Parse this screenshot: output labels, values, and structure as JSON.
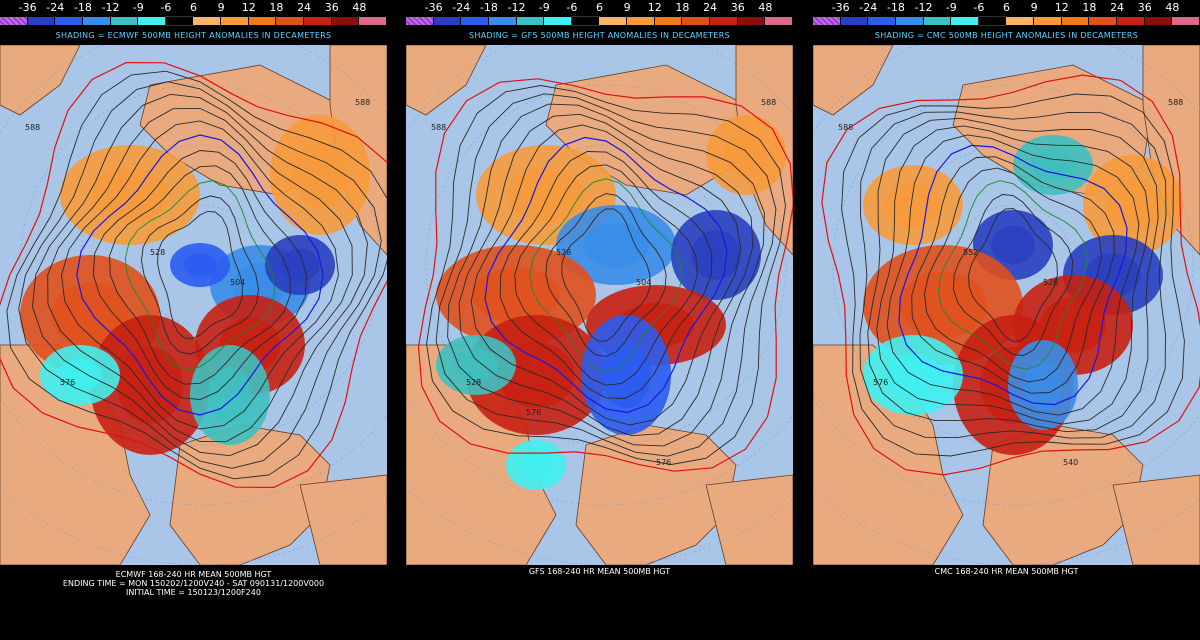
{
  "colorbar": {
    "labels": [
      "-36",
      "-24",
      "-18",
      "-12",
      "-9",
      "-6",
      "6",
      "9",
      "12",
      "18",
      "24",
      "36",
      "48"
    ],
    "colors": [
      "#9b40c8",
      "#2a3fbf",
      "#2b5cf0",
      "#3a8de8",
      "#3ec0c0",
      "#40f0f0",
      "#000000",
      "#f7b36b",
      "#f79a3b",
      "#ee7a1e",
      "#e0501c",
      "#c82012",
      "#8a1010",
      "#d86a8a"
    ]
  },
  "panels": [
    {
      "model": "ECMWF",
      "shading_title": "SHADING = ECMWF 500MB HEIGHT ANOMALIES IN DECAMETERS",
      "footer_lines": [
        "ECMWF 168-240 HR MEAN 500MB HGT",
        "ENDING TIME = MON 150202/1200V240 - SAT 090131/1200V000",
        "INITIAL TIME = 150123/1200F240"
      ],
      "contour_labels": [
        "588",
        "588",
        "528",
        "504",
        "576"
      ]
    },
    {
      "model": "GFS",
      "shading_title": "SHADING = GFS 500MB HEIGHT ANOMALIES IN DECAMETERS",
      "footer_lines": [
        "GFS 168-240 HR MEAN 500MB HGT"
      ],
      "contour_labels": [
        "588",
        "588",
        "528",
        "504",
        "528",
        "576",
        "576"
      ]
    },
    {
      "model": "CMC",
      "shading_title": "SHADING = CMC 500MB HEIGHT ANOMALIES IN DECAMETERS",
      "footer_lines": [
        "CMC 168-240 HR MEAN 500MB HGT"
      ],
      "contour_labels": [
        "588",
        "588",
        "552",
        "528",
        "576",
        "540"
      ]
    }
  ],
  "map_colors": {
    "ocean": "#a9c6e8",
    "land": "#e9aa80",
    "coast": "#6a3a20",
    "contour": "#2a2a2a",
    "contour_red": "#e01010",
    "contour_blue": "#1818e0",
    "contour_green": "#1a8a2a"
  }
}
